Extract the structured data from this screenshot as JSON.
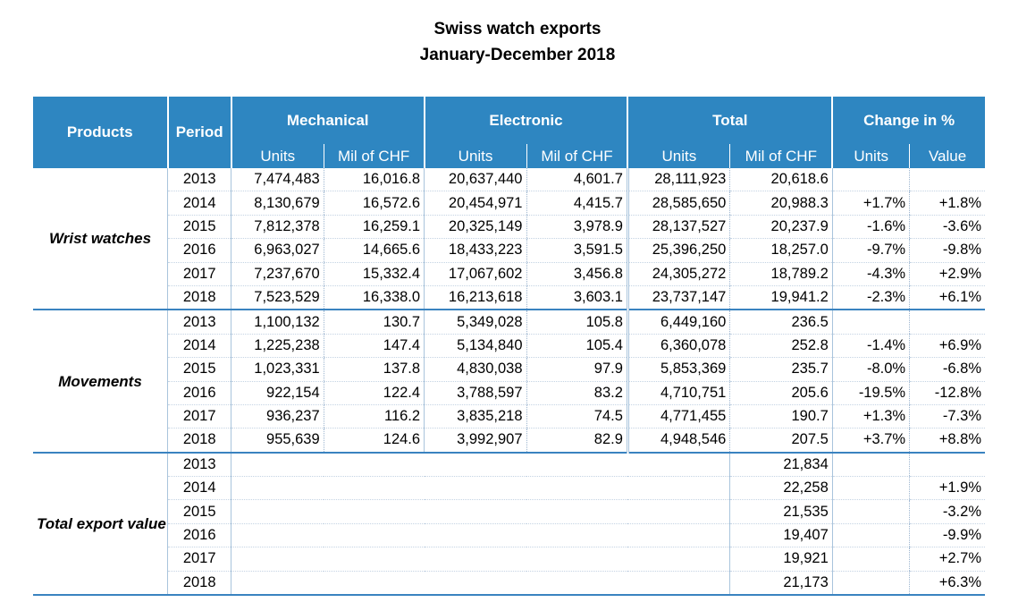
{
  "title": {
    "line1": "Swiss watch exports",
    "line2": "January-December 2018"
  },
  "headers": {
    "products": "Products",
    "period": "Period",
    "mechanical": "Mechanical",
    "electronic": "Electronic",
    "total": "Total",
    "change": "Change in %",
    "units": "Units",
    "mil_chf": "Mil of CHF",
    "value": "Value"
  },
  "wrist_watches": {
    "label": "Wrist watches",
    "rows": [
      {
        "year": "2013",
        "mech_units": "7,474,483",
        "mech_chf": "16,016.8",
        "elec_units": "20,637,440",
        "elec_chf": "4,601.7",
        "tot_units": "28,111,923",
        "tot_chf": "20,618.6",
        "chg_units": "",
        "chg_value": ""
      },
      {
        "year": "2014",
        "mech_units": "8,130,679",
        "mech_chf": "16,572.6",
        "elec_units": "20,454,971",
        "elec_chf": "4,415.7",
        "tot_units": "28,585,650",
        "tot_chf": "20,988.3",
        "chg_units": "+1.7%",
        "chg_value": "+1.8%"
      },
      {
        "year": "2015",
        "mech_units": "7,812,378",
        "mech_chf": "16,259.1",
        "elec_units": "20,325,149",
        "elec_chf": "3,978.9",
        "tot_units": "28,137,527",
        "tot_chf": "20,237.9",
        "chg_units": "-1.6%",
        "chg_value": "-3.6%"
      },
      {
        "year": "2016",
        "mech_units": "6,963,027",
        "mech_chf": "14,665.6",
        "elec_units": "18,433,223",
        "elec_chf": "3,591.5",
        "tot_units": "25,396,250",
        "tot_chf": "18,257.0",
        "chg_units": "-9.7%",
        "chg_value": "-9.8%"
      },
      {
        "year": "2017",
        "mech_units": "7,237,670",
        "mech_chf": "15,332.4",
        "elec_units": "17,067,602",
        "elec_chf": "3,456.8",
        "tot_units": "24,305,272",
        "tot_chf": "18,789.2",
        "chg_units": "-4.3%",
        "chg_value": "+2.9%"
      },
      {
        "year": "2018",
        "mech_units": "7,523,529",
        "mech_chf": "16,338.0",
        "elec_units": "16,213,618",
        "elec_chf": "3,603.1",
        "tot_units": "23,737,147",
        "tot_chf": "19,941.2",
        "chg_units": "-2.3%",
        "chg_value": "+6.1%"
      }
    ]
  },
  "movements": {
    "label": "Movements",
    "rows": [
      {
        "year": "2013",
        "mech_units": "1,100,132",
        "mech_chf": "130.7",
        "elec_units": "5,349,028",
        "elec_chf": "105.8",
        "tot_units": "6,449,160",
        "tot_chf": "236.5",
        "chg_units": "",
        "chg_value": ""
      },
      {
        "year": "2014",
        "mech_units": "1,225,238",
        "mech_chf": "147.4",
        "elec_units": "5,134,840",
        "elec_chf": "105.4",
        "tot_units": "6,360,078",
        "tot_chf": "252.8",
        "chg_units": "-1.4%",
        "chg_value": "+6.9%"
      },
      {
        "year": "2015",
        "mech_units": "1,023,331",
        "mech_chf": "137.8",
        "elec_units": "4,830,038",
        "elec_chf": "97.9",
        "tot_units": "5,853,369",
        "tot_chf": "235.7",
        "chg_units": "-8.0%",
        "chg_value": "-6.8%"
      },
      {
        "year": "2016",
        "mech_units": "922,154",
        "mech_chf": "122.4",
        "elec_units": "3,788,597",
        "elec_chf": "83.2",
        "tot_units": "4,710,751",
        "tot_chf": "205.6",
        "chg_units": "-19.5%",
        "chg_value": "-12.8%"
      },
      {
        "year": "2017",
        "mech_units": "936,237",
        "mech_chf": "116.2",
        "elec_units": "3,835,218",
        "elec_chf": "74.5",
        "tot_units": "4,771,455",
        "tot_chf": "190.7",
        "chg_units": "+1.3%",
        "chg_value": "-7.3%"
      },
      {
        "year": "2018",
        "mech_units": "955,639",
        "mech_chf": "124.6",
        "elec_units": "3,992,907",
        "elec_chf": "82.9",
        "tot_units": "4,948,546",
        "tot_chf": "207.5",
        "chg_units": "+3.7%",
        "chg_value": "+8.8%"
      }
    ]
  },
  "total_export": {
    "label": "Total export value",
    "rows": [
      {
        "year": "2013",
        "tot_chf": "21,834",
        "chg_value": ""
      },
      {
        "year": "2014",
        "tot_chf": "22,258",
        "chg_value": "+1.9%"
      },
      {
        "year": "2015",
        "tot_chf": "21,535",
        "chg_value": "-3.2%"
      },
      {
        "year": "2016",
        "tot_chf": "19,407",
        "chg_value": "-9.9%"
      },
      {
        "year": "2017",
        "tot_chf": "19,921",
        "chg_value": "+2.7%"
      },
      {
        "year": "2018",
        "tot_chf": "21,173",
        "chg_value": "+6.3%"
      }
    ]
  }
}
